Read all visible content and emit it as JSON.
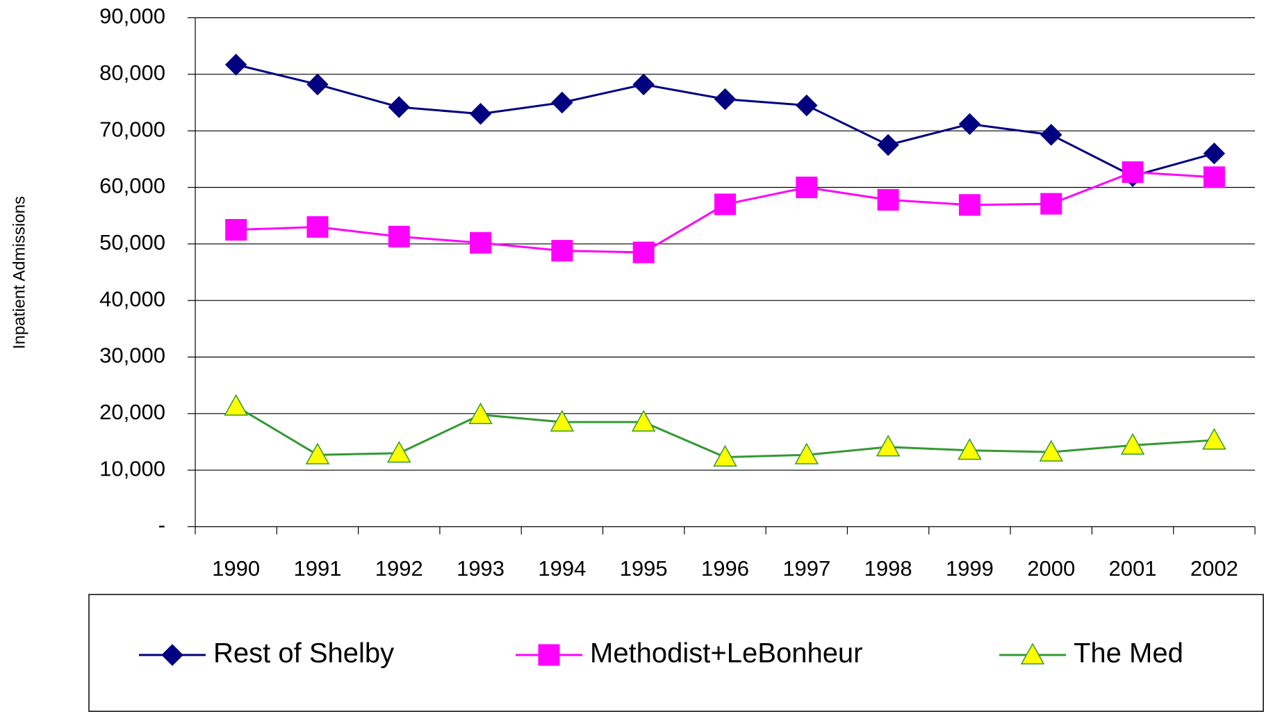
{
  "chart_data": {
    "type": "line",
    "y_label": "Inpatient Admissions",
    "categories": [
      "1990",
      "1991",
      "1992",
      "1993",
      "1994",
      "1995",
      "1996",
      "1997",
      "1998",
      "1999",
      "2000",
      "2001",
      "2002"
    ],
    "series": [
      {
        "name": "Rest of Shelby",
        "color": "#000080",
        "marker": "diamond",
        "marker_fill": "#000080",
        "values": [
          81700,
          78200,
          74200,
          73000,
          75000,
          78200,
          75600,
          74500,
          67500,
          71200,
          69300,
          62000,
          66000
        ]
      },
      {
        "name": "Methodist+LeBonheur",
        "color": "#ff00ff",
        "marker": "square",
        "marker_fill": "#ff00ff",
        "values": [
          52500,
          53000,
          51300,
          50200,
          48800,
          48500,
          57000,
          60000,
          57800,
          56900,
          57100,
          62700,
          61800
        ]
      },
      {
        "name": "The Med",
        "color": "#339933",
        "marker": "triangle",
        "marker_fill": "#ffff00",
        "values": [
          21300,
          12700,
          13000,
          19800,
          18500,
          18500,
          12300,
          12700,
          14100,
          13500,
          13200,
          14400,
          15300
        ]
      }
    ],
    "ylim": [
      0,
      90000
    ],
    "yticks": [
      {
        "value": 0,
        "label": "-"
      },
      {
        "value": 10000,
        "label": "10,000"
      },
      {
        "value": 20000,
        "label": "20,000"
      },
      {
        "value": 30000,
        "label": "30,000"
      },
      {
        "value": 40000,
        "label": "40,000"
      },
      {
        "value": 50000,
        "label": "50,000"
      },
      {
        "value": 60000,
        "label": "60,000"
      },
      {
        "value": 70000,
        "label": "70,000"
      },
      {
        "value": 80000,
        "label": "80,000"
      },
      {
        "value": 90000,
        "label": "90,000"
      }
    ],
    "grid": true,
    "legend": "bottom"
  }
}
